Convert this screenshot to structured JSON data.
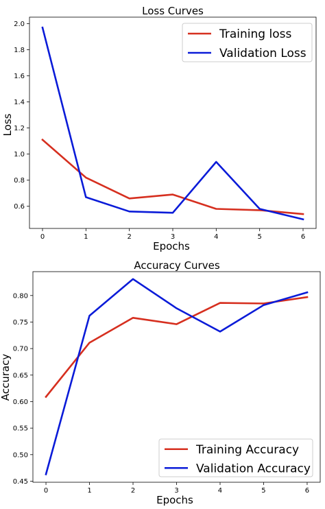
{
  "colors": {
    "series_1": "#d62f1f",
    "series_2": "#0a1bd8",
    "axes": "#000000",
    "legend_border": "#cccccc"
  },
  "chart_data": [
    {
      "type": "line",
      "title": "Loss Curves",
      "xlabel": "Epochs",
      "ylabel": "Loss",
      "x": [
        0,
        1,
        2,
        3,
        4,
        5,
        6
      ],
      "xticks": [
        "0",
        "1",
        "2",
        "3",
        "4",
        "5",
        "6"
      ],
      "yticks": [
        "0.6",
        "0.8",
        "1.0",
        "1.2",
        "1.4",
        "1.6",
        "1.8",
        "2.0"
      ],
      "xlim": [
        -0.3,
        6.3
      ],
      "ylim": [
        0.43,
        2.05
      ],
      "grid": false,
      "legend_placement": "top-right",
      "series": [
        {
          "name": "Training loss",
          "values": [
            1.11,
            0.82,
            0.66,
            0.69,
            0.58,
            0.57,
            0.54
          ]
        },
        {
          "name": "Validation Loss",
          "values": [
            1.97,
            0.67,
            0.56,
            0.55,
            0.94,
            0.58,
            0.5
          ]
        }
      ]
    },
    {
      "type": "line",
      "title": "Accuracy Curves",
      "xlabel": "Epochs",
      "ylabel": "Accuracy",
      "x": [
        0,
        1,
        2,
        3,
        4,
        5,
        6
      ],
      "xticks": [
        "0",
        "1",
        "2",
        "3",
        "4",
        "5",
        "6"
      ],
      "yticks": [
        "0.45",
        "0.50",
        "0.55",
        "0.60",
        "0.65",
        "0.70",
        "0.75",
        "0.80"
      ],
      "xlim": [
        -0.3,
        6.3
      ],
      "ylim": [
        0.448,
        0.845
      ],
      "grid": false,
      "legend_placement": "bottom-right",
      "series": [
        {
          "name": "Training Accuracy",
          "values": [
            0.609,
            0.711,
            0.758,
            0.746,
            0.786,
            0.785,
            0.797
          ]
        },
        {
          "name": "Validation Accuracy",
          "values": [
            0.463,
            0.762,
            0.831,
            0.776,
            0.732,
            0.782,
            0.806
          ]
        }
      ]
    }
  ]
}
